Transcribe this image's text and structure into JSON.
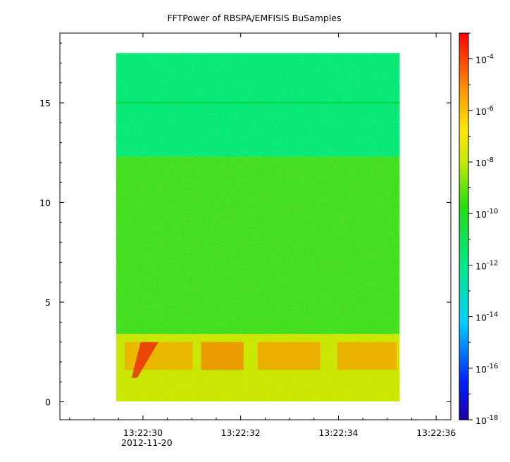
{
  "chart_data": {
    "type": "heatmap",
    "title": "FFTPower of RBSPA/EMFISIS  BuSamples",
    "xlabel": "",
    "ylabel": "",
    "x_start": "13:22:29.45",
    "x_end": "13:22:35.25",
    "xlim": [
      "13:22:28.3",
      "13:22:36.3"
    ],
    "x_ticks": [
      "13:22:30",
      "13:22:32",
      "13:22:34",
      "13:22:36"
    ],
    "x_tick_date": "2012-11-20",
    "ylim": [
      -0.9,
      18.5
    ],
    "y_ticks": [
      "0",
      "5",
      "10",
      "15"
    ],
    "y_data_range": [
      0,
      17.5
    ],
    "colorbar": {
      "scale": "log",
      "range": [
        1e-18,
        0.001
      ],
      "colormap": "rainbow",
      "ticks": [
        {
          "base": "10",
          "exp": "-4",
          "value": 0.0001
        },
        {
          "base": "10",
          "exp": "-6",
          "value": 1e-06
        },
        {
          "base": "10",
          "exp": "-8",
          "value": 1e-08
        },
        {
          "base": "10",
          "exp": "-10",
          "value": 1e-10
        },
        {
          "base": "10",
          "exp": "-12",
          "value": 1e-12
        },
        {
          "base": "10",
          "exp": "-14",
          "value": 1e-14
        },
        {
          "base": "10",
          "exp": "-16",
          "value": 1e-16
        },
        {
          "base": "10",
          "exp": "-18",
          "value": 1e-18
        }
      ]
    },
    "bands": [
      {
        "y_range": [
          12.3,
          17.5
        ],
        "level": "~1e-12",
        "color": "#00e878",
        "note": "lower power (teal-green)"
      },
      {
        "y_range": [
          3.4,
          12.3
        ],
        "level": "~1e-10",
        "color": "#3ede1f",
        "note": "speckled green"
      },
      {
        "y_range": [
          0,
          3.4
        ],
        "level": "~1e-8",
        "color": "#c8e600",
        "note": "intense (yellow-orange-red)"
      }
    ],
    "grid": false
  }
}
